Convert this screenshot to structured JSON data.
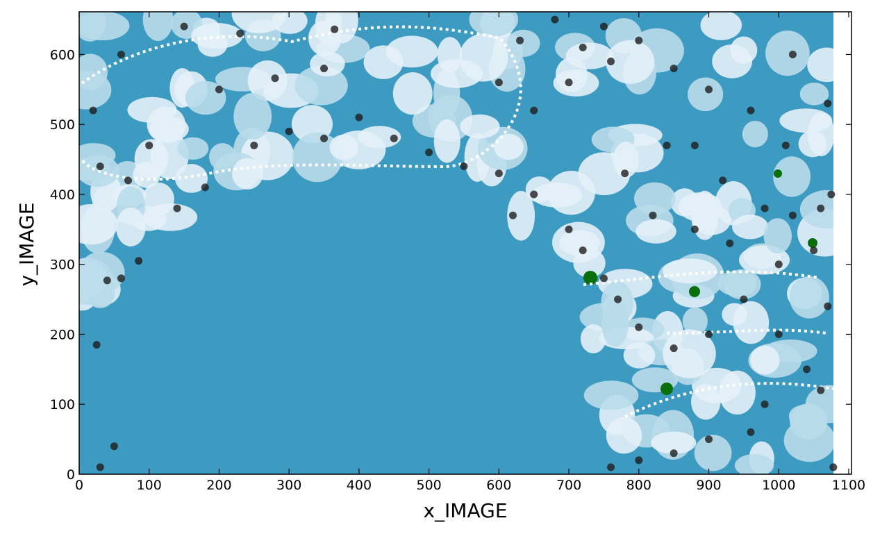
{
  "chart_data": {
    "type": "scatter",
    "xlabel": "x_IMAGE",
    "ylabel": "y_IMAGE",
    "x": [
      25,
      40,
      60,
      85,
      50,
      30,
      140,
      180,
      250,
      300,
      350,
      400,
      450,
      500,
      550,
      600,
      620,
      650,
      700,
      720,
      750,
      770,
      800,
      850,
      900,
      950,
      1000,
      1050,
      1070,
      1000,
      980,
      900,
      850,
      800,
      760,
      1040,
      1060,
      960,
      1078,
      930,
      880,
      820,
      780,
      840,
      880,
      920,
      980,
      1020,
      1060,
      1010,
      960,
      900,
      850,
      800,
      750,
      700,
      650,
      600,
      630,
      680,
      720,
      760,
      200,
      230,
      150,
      60,
      20,
      30,
      70,
      100,
      350,
      280,
      365,
      1020,
      1070,
      1075
    ],
    "values": [
      185,
      277,
      280,
      305,
      40,
      10,
      380,
      410,
      470,
      490,
      480,
      510,
      480,
      460,
      440,
      430,
      370,
      400,
      350,
      320,
      280,
      250,
      210,
      180,
      200,
      250,
      300,
      320,
      240,
      200,
      100,
      50,
      30,
      20,
      10,
      150,
      120,
      60,
      10,
      330,
      350,
      370,
      430,
      470,
      470,
      420,
      380,
      370,
      380,
      470,
      520,
      550,
      580,
      620,
      640,
      560,
      520,
      560,
      620,
      650,
      610,
      590,
      550,
      630,
      640,
      600,
      520,
      440,
      420,
      470,
      580,
      566,
      636,
      600,
      530,
      400
    ],
    "color": "#1e1e1e",
    "xlim": [
      0,
      1104
    ],
    "ylim": [
      0,
      661
    ],
    "xticks": [
      0,
      100,
      200,
      300,
      400,
      500,
      600,
      700,
      800,
      900,
      1000,
      1100
    ],
    "yticks": [
      0,
      100,
      200,
      300,
      400,
      500,
      600
    ]
  }
}
